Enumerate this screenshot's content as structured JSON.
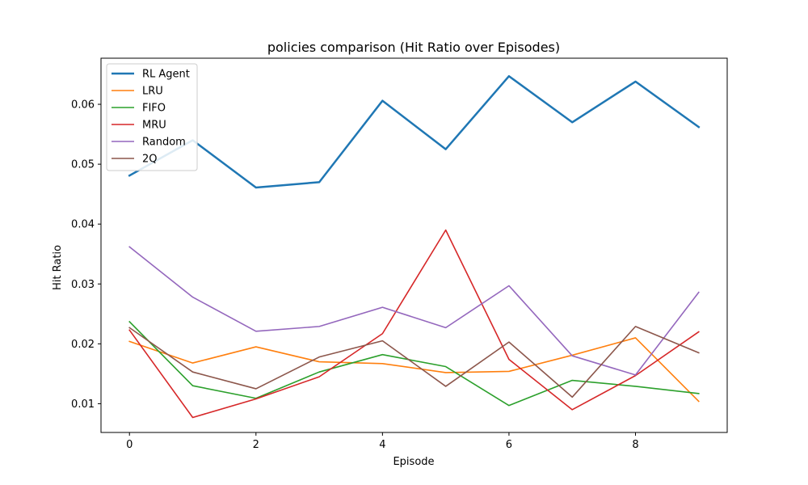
{
  "chart_data": {
    "type": "line",
    "title": "policies comparison (Hit Ratio over Episodes)",
    "xlabel": "Episode",
    "ylabel": "Hit Ratio",
    "x": [
      0,
      1,
      2,
      3,
      4,
      5,
      6,
      7,
      8,
      9
    ],
    "xlim": [
      -0.45,
      9.45
    ],
    "ylim": [
      0.0052,
      0.0677
    ],
    "xticks": [
      0,
      2,
      4,
      6,
      8
    ],
    "xtick_labels": [
      "0",
      "2",
      "4",
      "6",
      "8"
    ],
    "yticks": [
      0.01,
      0.02,
      0.03,
      0.04,
      0.05,
      0.06
    ],
    "ytick_labels": [
      "0.01",
      "0.02",
      "0.03",
      "0.04",
      "0.05",
      "0.06"
    ],
    "grid": false,
    "legend_position": "top-left",
    "series": [
      {
        "name": "RL Agent",
        "color": "#1f77b4",
        "bold": true,
        "values": [
          0.0481,
          0.054,
          0.0461,
          0.047,
          0.0606,
          0.0525,
          0.0647,
          0.057,
          0.0638,
          0.0562
        ]
      },
      {
        "name": "LRU",
        "color": "#ff7f0e",
        "values": [
          0.0204,
          0.0168,
          0.0195,
          0.017,
          0.0167,
          0.0152,
          0.0154,
          0.0181,
          0.021,
          0.0104
        ]
      },
      {
        "name": "FIFO",
        "color": "#2ca02c",
        "values": [
          0.0237,
          0.013,
          0.0109,
          0.0153,
          0.0182,
          0.0162,
          0.0097,
          0.0139,
          0.0129,
          0.0117
        ]
      },
      {
        "name": "MRU",
        "color": "#d62728",
        "values": [
          0.0223,
          0.0077,
          0.0108,
          0.0145,
          0.0217,
          0.039,
          0.0174,
          0.009,
          0.0147,
          0.022
        ]
      },
      {
        "name": "Random",
        "color": "#9467bd",
        "values": [
          0.0362,
          0.0278,
          0.0221,
          0.0229,
          0.0261,
          0.0227,
          0.0297,
          0.018,
          0.0148,
          0.0286
        ]
      },
      {
        "name": "2Q",
        "color": "#8c564b",
        "values": [
          0.0227,
          0.0153,
          0.0125,
          0.0178,
          0.0205,
          0.0129,
          0.0203,
          0.0111,
          0.0229,
          0.0185
        ]
      }
    ]
  }
}
